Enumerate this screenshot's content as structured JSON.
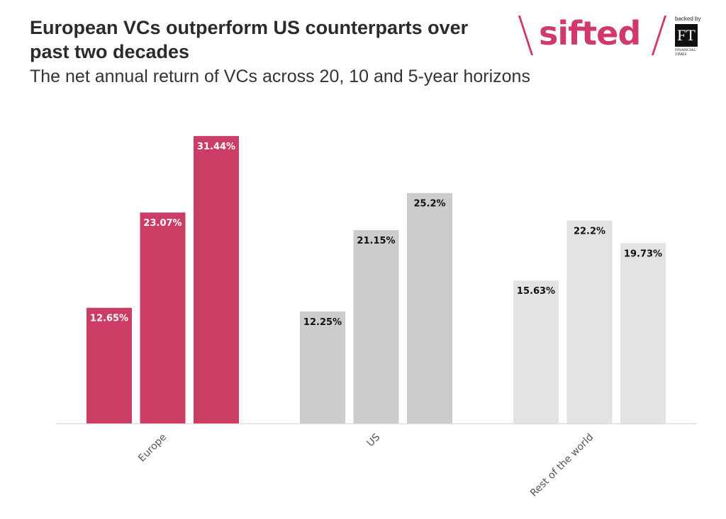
{
  "header": {
    "title": "European VCs outperform US counterparts over past two decades",
    "subtitle": "The net annual return of VCs across 20, 10 and 5-year horizons"
  },
  "logo": {
    "wordmark": "sifted",
    "backed_by": "backed by",
    "ft_mark": "FT",
    "ft_name": "FINANCIAL TIMES",
    "brand_color": "#d0396a"
  },
  "chart_data": {
    "type": "bar",
    "categories": [
      "Europe",
      "US",
      "Rest of the world"
    ],
    "series": [
      {
        "values": [
          12.65,
          12.25,
          15.63
        ]
      },
      {
        "values": [
          23.07,
          21.15,
          22.2
        ]
      },
      {
        "values": [
          31.44,
          25.2,
          19.73
        ]
      }
    ],
    "value_labels": [
      [
        "12.65%",
        "23.07%",
        "31.44%"
      ],
      [
        "12.25%",
        "21.15%",
        "25.2%"
      ],
      [
        "15.63%",
        "22.2%",
        "19.73%"
      ]
    ],
    "category_colors": [
      "#cc3d66",
      "#cccccc",
      "#e3e3e3"
    ],
    "label_colors": [
      "#ffffff",
      "#111111",
      "#111111"
    ],
    "ylim": [
      0,
      33
    ],
    "grid": false,
    "legend": "none",
    "xlabel": "",
    "ylabel": ""
  }
}
